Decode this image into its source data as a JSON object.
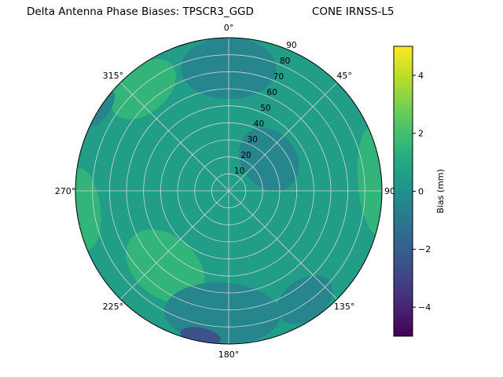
{
  "title": {
    "left": "Delta Antenna Phase Biases: TPSCR3_GGD",
    "right": "CONE IRNSS-L5"
  },
  "chart_data": {
    "type": "polar_contour",
    "title": "Delta Antenna Phase Biases: TPSCR3_GGD      CONE IRNSS-L5",
    "angular_axis": {
      "zero_location": "top",
      "direction": "clockwise",
      "tick_angles_deg": [
        0,
        45,
        90,
        135,
        180,
        225,
        270,
        315
      ],
      "tick_labels": [
        "0°",
        "45°",
        "90°",
        "135°",
        "180°",
        "225°",
        "270°",
        "315°"
      ]
    },
    "radial_axis": {
      "min": 0,
      "max": 90,
      "tick_values": [
        10,
        20,
        30,
        40,
        50,
        60,
        70,
        80,
        90
      ],
      "tick_labels": [
        "10",
        "20",
        "30",
        "40",
        "50",
        "60",
        "70",
        "80",
        "90"
      ],
      "label_angle_deg": 22.5
    },
    "colorbar": {
      "label": "Bias (mm)",
      "min": -5,
      "max": 5,
      "tick_values": [
        -4,
        -2,
        0,
        2,
        4
      ],
      "tick_labels": [
        "−4",
        "−2",
        "0",
        "2",
        "4"
      ],
      "colormap": "viridis",
      "stops": [
        "#440154",
        "#482475",
        "#414487",
        "#355f8d",
        "#2a788e",
        "#21918c",
        "#22a884",
        "#44bf70",
        "#7ad151",
        "#bddf26",
        "#fde725"
      ]
    },
    "field": {
      "units": "mm",
      "background_bias_mm": 0.5,
      "regions": [
        {
          "name": "top-center-low",
          "azimuth_deg": 0,
          "zenith_deg": 72,
          "tangential_extent": 28,
          "radial_extent": 18,
          "bias_mm": -0.5
        },
        {
          "name": "upper-left-high",
          "azimuth_deg": 320,
          "zenith_deg": 78,
          "tangential_extent": 22,
          "radial_extent": 14,
          "bias_mm": 1.5
        },
        {
          "name": "upper-left-rim-low",
          "azimuth_deg": 303,
          "zenith_deg": 89,
          "tangential_extent": 12,
          "radial_extent": 5,
          "bias_mm": -0.5
        },
        {
          "name": "left-rim-high",
          "azimuth_deg": 263,
          "zenith_deg": 86,
          "tangential_extent": 24,
          "radial_extent": 10,
          "bias_mm": 1.5
        },
        {
          "name": "right-rim-high",
          "azimuth_deg": 86,
          "zenith_deg": 86,
          "tangential_extent": 32,
          "radial_extent": 10,
          "bias_mm": 1.5
        },
        {
          "name": "lower-left-high",
          "azimuth_deg": 220,
          "zenith_deg": 58,
          "tangential_extent": 26,
          "radial_extent": 18,
          "bias_mm": 1.5
        },
        {
          "name": "bottom-center-low",
          "azimuth_deg": 183,
          "zenith_deg": 72,
          "tangential_extent": 34,
          "radial_extent": 18,
          "bias_mm": -0.5
        },
        {
          "name": "bottom-rim-very-low",
          "azimuth_deg": 191,
          "zenith_deg": 87,
          "tangential_extent": 12,
          "radial_extent": 5,
          "bias_mm": -2.5
        },
        {
          "name": "lower-right-low",
          "azimuth_deg": 145,
          "zenith_deg": 78,
          "tangential_extent": 18,
          "radial_extent": 12,
          "bias_mm": -0.5
        },
        {
          "name": "center-right-low",
          "azimuth_deg": 52,
          "zenith_deg": 30,
          "tangential_extent": 20,
          "radial_extent": 16,
          "bias_mm": -0.5
        }
      ]
    },
    "grid": {
      "on": true,
      "color": "#d9d9d9"
    },
    "boundary_color": "#000000"
  }
}
